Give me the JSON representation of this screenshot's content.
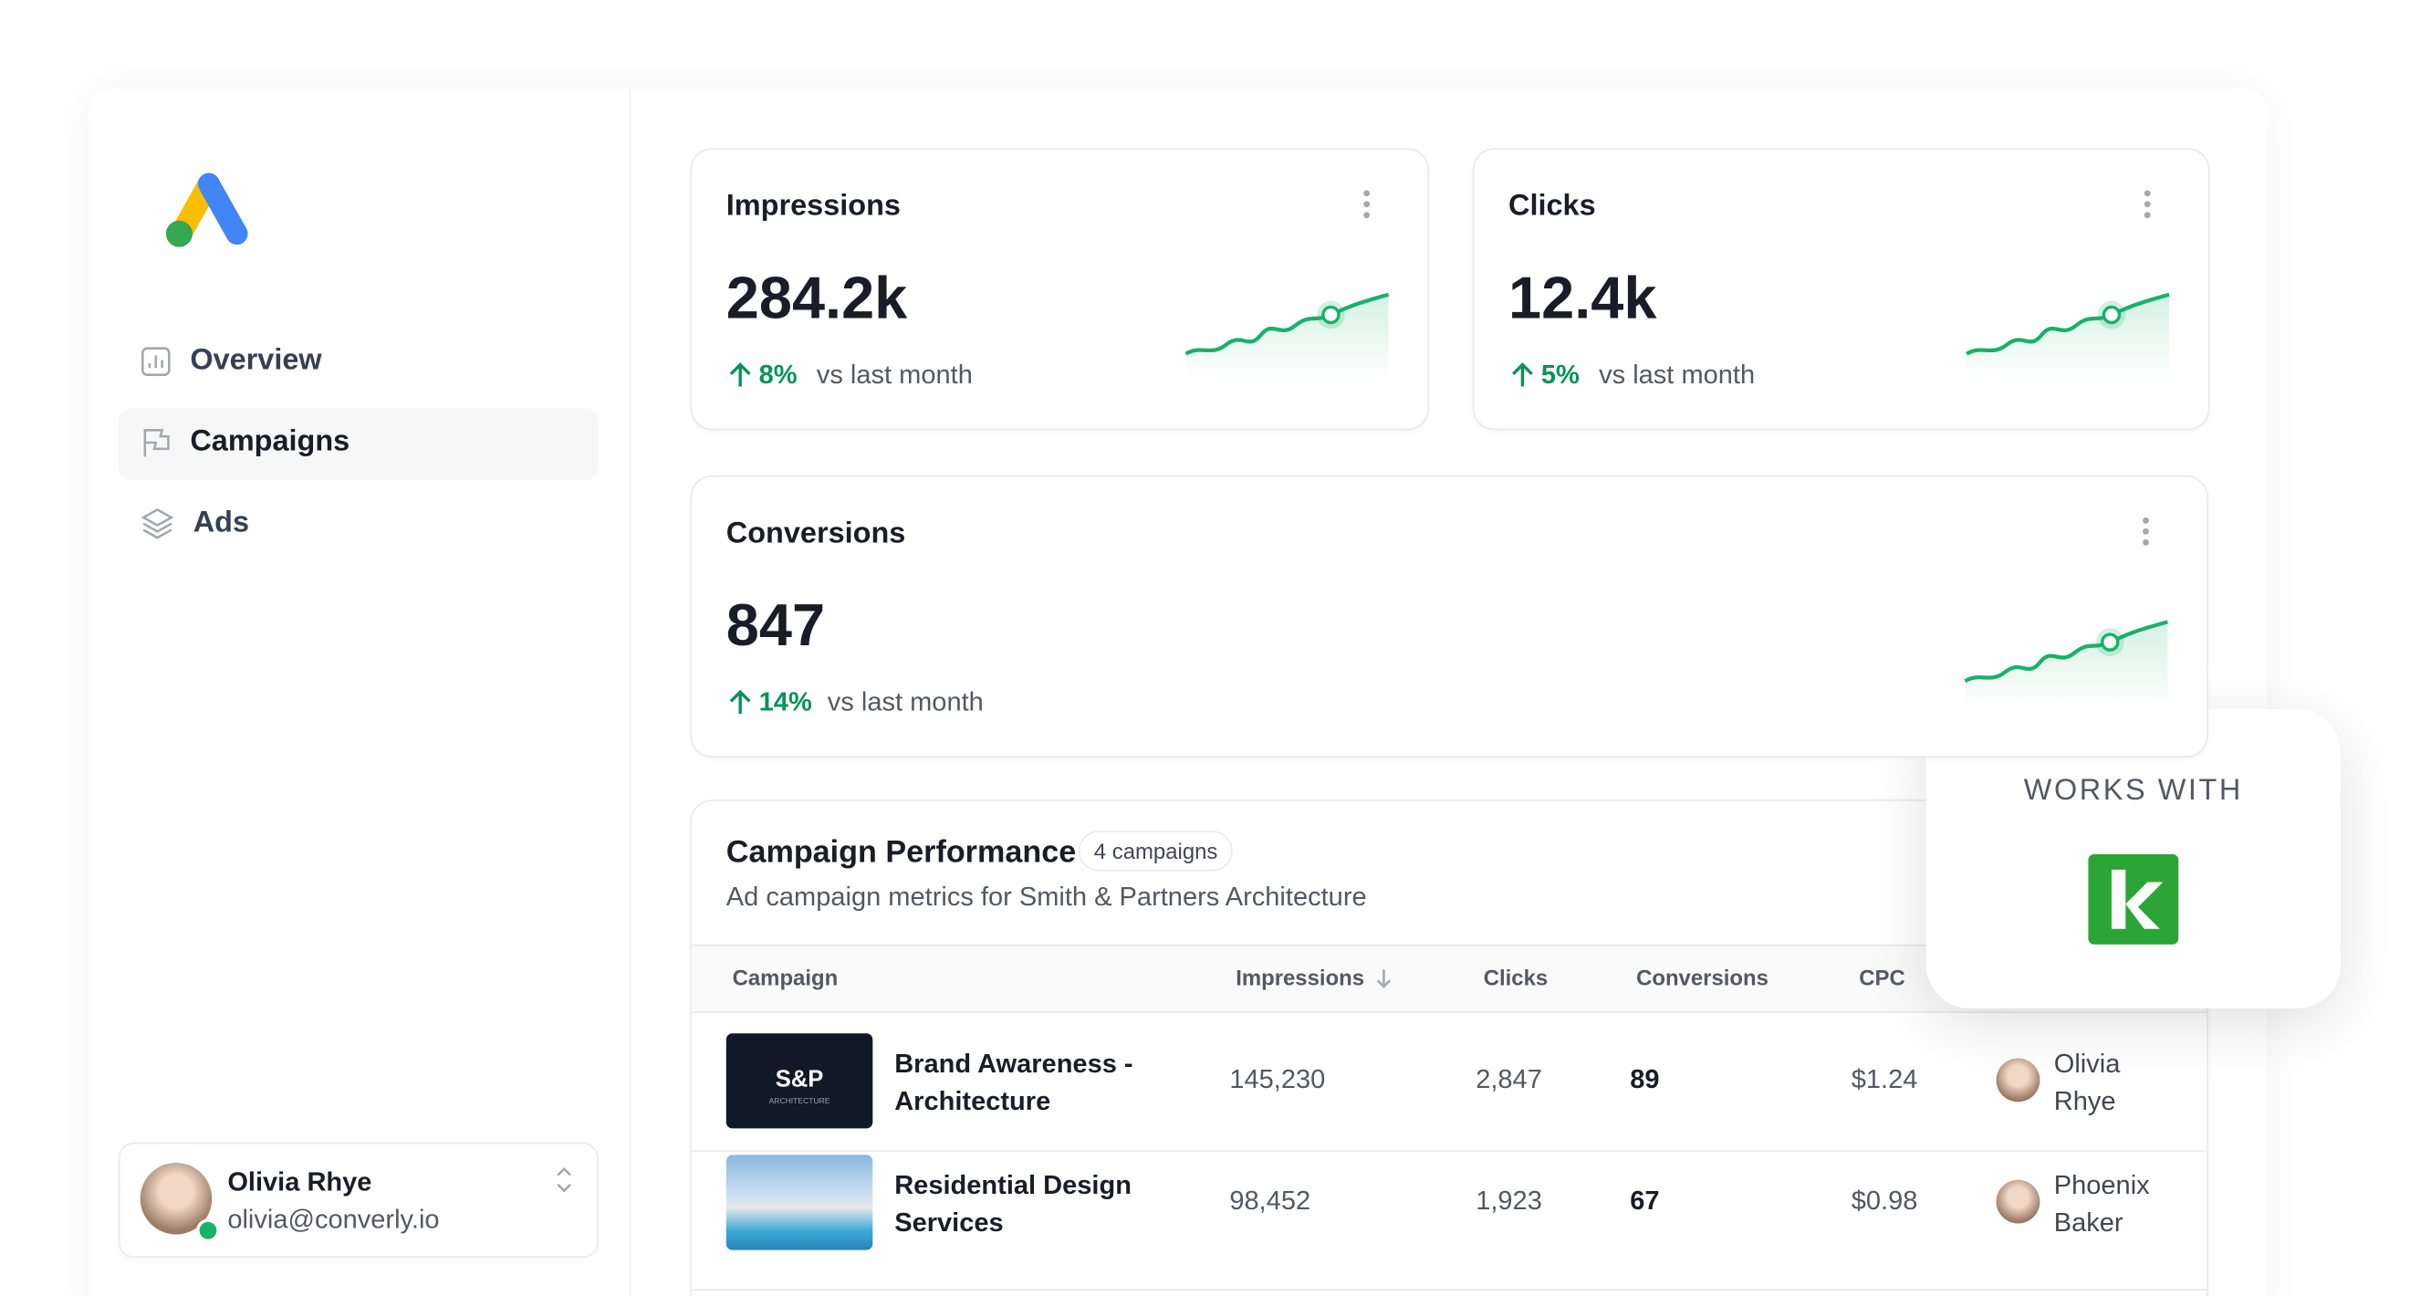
{
  "nav": [
    "Overview",
    "Campaigns",
    "Ads"
  ],
  "user": {
    "name": "Olivia Rhye",
    "email": "olivia@converly.io"
  },
  "metrics": [
    {
      "label": "Impressions",
      "value": "284.2k",
      "change": "8%",
      "note": "vs last month"
    },
    {
      "label": "Clicks",
      "value": "12.4k",
      "change": "5%",
      "note": "vs last month"
    },
    {
      "label": "Conversions",
      "value": "847",
      "change": "14%",
      "note": "vs last month"
    }
  ],
  "table": {
    "title": "Campaign Performance",
    "badge": "4 campaigns",
    "subtitle": "Ad campaign metrics for Smith & Partners Architecture",
    "columns": [
      "Campaign",
      "Impressions",
      "Clicks",
      "Conversions",
      "CPC"
    ],
    "rows": [
      {
        "thumb": "S&P",
        "thumb_sub": "ARCHITECTURE",
        "name": "Brand Awareness - Architecture",
        "impressions": "145,230",
        "clicks": "2,847",
        "conversions": "89",
        "cpc": "$1.24",
        "owner": "Olivia Rhye"
      },
      {
        "name": "Residential Design Services",
        "impressions": "98,452",
        "clicks": "1,923",
        "conversions": "67",
        "cpc": "$0.98",
        "owner": "Phoenix Baker"
      }
    ]
  },
  "popup": {
    "title": "WORKS WITH"
  }
}
